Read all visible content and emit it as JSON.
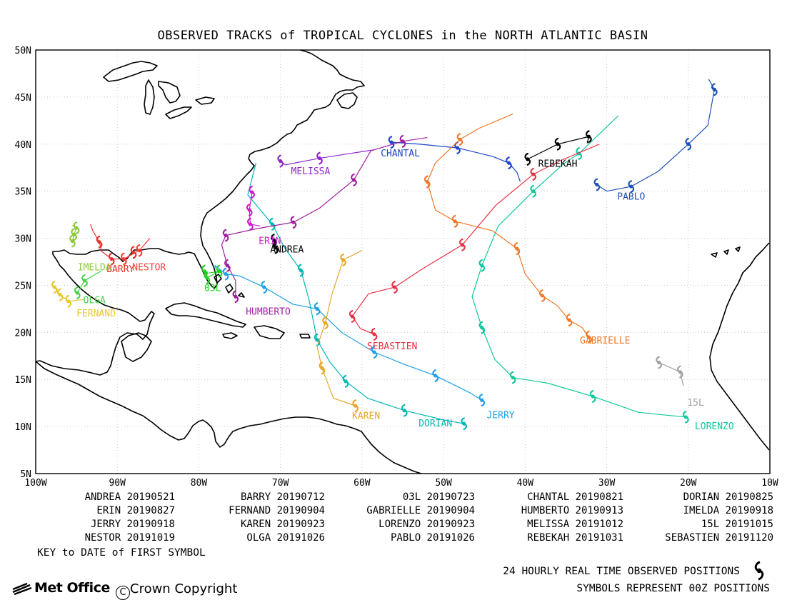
{
  "title": "OBSERVED TRACKS of TROPICAL CYCLONES in the NORTH ATLANTIC BASIN",
  "map": {
    "lon_range": [
      -100,
      -10
    ],
    "lat_range": [
      5,
      50
    ],
    "lat_labels": [
      "5N",
      "10N",
      "15N",
      "20N",
      "25N",
      "30N",
      "35N",
      "40N",
      "45N",
      "50N"
    ],
    "lon_labels": [
      "100W",
      "90W",
      "80W",
      "70W",
      "60W",
      "50W",
      "40W",
      "30W",
      "20W",
      "10W"
    ],
    "grid": true
  },
  "storms": [
    {
      "name": "ANDREA",
      "color": "#000000",
      "label_pos": [
        -69.2,
        28.5
      ],
      "points": [
        [
          -70.8,
          29.8
        ],
        [
          -70.6,
          29.0
        ]
      ]
    },
    {
      "name": "BARRY",
      "color": "#e8302c",
      "label_pos": [
        -89.6,
        26.4
      ],
      "points": [
        [
          -88.0,
          28.5
        ],
        [
          -89.0,
          27.8
        ],
        [
          -90.7,
          27.8
        ],
        [
          -91.9,
          28.6
        ],
        [
          -92.2,
          29.6
        ],
        [
          -93.0,
          30.8
        ],
        [
          -93.3,
          31.5
        ]
      ]
    },
    {
      "name": "03L",
      "color": "#1fd01f",
      "label_pos": [
        -78.3,
        24.4
      ],
      "points": [
        [
          -79.3,
          26.5
        ],
        [
          -79.0,
          25.8
        ],
        [
          -77.5,
          26.5
        ],
        [
          -78.8,
          26.3
        ]
      ]
    },
    {
      "name": "CHANTAL",
      "color": "#1e46c8",
      "label_pos": [
        -55.3,
        38.7
      ],
      "points": [
        [
          -56.4,
          40.2
        ],
        [
          -53.0,
          40.0
        ],
        [
          -48.3,
          39.6
        ],
        [
          -44.0,
          38.7
        ],
        [
          -42.0,
          38.0
        ],
        [
          -41.0,
          37.0
        ],
        [
          -40.6,
          36.0
        ]
      ]
    },
    {
      "name": "DORIAN",
      "color": "#00b7b5",
      "label_pos": [
        -51.0,
        10.0
      ],
      "points": [
        [
          -47.5,
          10.3
        ],
        [
          -50.0,
          10.7
        ],
        [
          -54.8,
          11.7
        ],
        [
          -59.3,
          13.0
        ],
        [
          -62.0,
          14.8
        ],
        [
          -63.9,
          16.8
        ],
        [
          -65.5,
          19.2
        ],
        [
          -66.5,
          23.5
        ],
        [
          -67.5,
          26.6
        ],
        [
          -69.5,
          29.0
        ],
        [
          -71.0,
          31.5
        ],
        [
          -74.0,
          34.6
        ],
        [
          -73.0,
          38.0
        ]
      ]
    },
    {
      "name": "ERIN",
      "color": "#cc1ccc",
      "label_pos": [
        -71.3,
        29.4
      ],
      "points": [
        [
          -73.5,
          34.9
        ],
        [
          -73.8,
          33.0
        ],
        [
          -73.7,
          31.5
        ],
        [
          -72.5,
          31.3
        ]
      ]
    },
    {
      "name": "FERNAND",
      "color": "#e8c82c",
      "label_pos": [
        -92.6,
        21.7
      ],
      "points": [
        [
          -97.7,
          24.8
        ],
        [
          -97.0,
          24.0
        ],
        [
          -96.0,
          23.3
        ],
        [
          -94.0,
          23.5
        ]
      ]
    },
    {
      "name": "GABRIELLE",
      "color": "#f07828",
      "label_pos": [
        -30.2,
        18.8
      ],
      "points": [
        [
          -32.2,
          19.5
        ],
        [
          -33.0,
          20.5
        ],
        [
          -34.6,
          21.3
        ],
        [
          -36.0,
          22.8
        ],
        [
          -37.9,
          23.9
        ],
        [
          -40.0,
          26.2
        ],
        [
          -41.0,
          28.9
        ],
        [
          -44.0,
          30.8
        ],
        [
          -48.6,
          31.8
        ],
        [
          -51.0,
          33.0
        ],
        [
          -52.0,
          36.0
        ],
        [
          -51.0,
          38.0
        ],
        [
          -48.0,
          40.5
        ],
        [
          -45.6,
          41.7
        ],
        [
          -41.5,
          43.2
        ]
      ]
    },
    {
      "name": "HUMBERTO",
      "color": "#a020a0",
      "label_pos": [
        -71.5,
        21.9
      ],
      "points": [
        [
          -75.5,
          23.8
        ],
        [
          -75.5,
          25.5
        ],
        [
          -76.5,
          27.1
        ],
        [
          -77.2,
          29.3
        ],
        [
          -76.7,
          30.3
        ],
        [
          -73.0,
          31.0
        ],
        [
          -68.4,
          31.7
        ],
        [
          -65.2,
          33.2
        ],
        [
          -61.0,
          36.2
        ],
        [
          -58.9,
          39.3
        ],
        [
          -55.0,
          40.3
        ],
        [
          -52.0,
          40.7
        ]
      ]
    },
    {
      "name": "IMELDA",
      "color": "#8cc83c",
      "label_pos": [
        -92.8,
        26.6
      ],
      "points": [
        [
          -95.5,
          29.7
        ],
        [
          -95.3,
          30.4
        ],
        [
          -95.0,
          31.1
        ],
        [
          -95.5,
          31.4
        ]
      ]
    },
    {
      "name": "JERRY",
      "color": "#1ea0e6",
      "label_pos": [
        -43.0,
        10.9
      ],
      "points": [
        [
          -45.3,
          12.8
        ],
        [
          -46.8,
          13.6
        ],
        [
          -51.0,
          15.4
        ],
        [
          -54.8,
          16.6
        ],
        [
          -58.5,
          17.9
        ],
        [
          -62.5,
          20.0
        ],
        [
          -65.5,
          22.5
        ],
        [
          -68.5,
          23.0
        ],
        [
          -72.0,
          24.8
        ],
        [
          -75.0,
          26.0
        ],
        [
          -76.7,
          26.2
        ],
        [
          -78.0,
          27.1
        ],
        [
          -78.0,
          26.8
        ]
      ]
    },
    {
      "name": "KAREN",
      "color": "#e6a628",
      "label_pos": [
        -59.5,
        10.8
      ],
      "points": [
        [
          -60.8,
          12.2
        ],
        [
          -63.5,
          13.0
        ],
        [
          -64.9,
          16.2
        ],
        [
          -65.5,
          18.5
        ],
        [
          -64.5,
          21.0
        ],
        [
          -63.7,
          24.0
        ],
        [
          -62.3,
          27.7
        ],
        [
          -60.0,
          28.7
        ]
      ]
    },
    {
      "name": "LORENZO",
      "color": "#10c89c",
      "label_pos": [
        -16.8,
        9.7
      ],
      "points": [
        [
          -20.3,
          11.0
        ],
        [
          -26.1,
          11.5
        ],
        [
          -31.7,
          13.2
        ],
        [
          -37.2,
          14.6
        ],
        [
          -41.5,
          15.2
        ],
        [
          -43.7,
          17.1
        ],
        [
          -45.3,
          20.5
        ],
        [
          -46.5,
          23.8
        ],
        [
          -45.3,
          27.1
        ],
        [
          -43.3,
          31.3
        ],
        [
          -39.0,
          35.0
        ],
        [
          -35.3,
          37.9
        ],
        [
          -33.4,
          39.0
        ],
        [
          -28.6,
          43.0
        ]
      ]
    },
    {
      "name": "MELISSA",
      "color": "#8c28c8",
      "label_pos": [
        -66.3,
        36.8
      ],
      "points": [
        [
          -70.0,
          38.2
        ],
        [
          -69.4,
          37.8
        ],
        [
          -65.2,
          38.5
        ],
        [
          -61.5,
          39.0
        ],
        [
          -58.5,
          39.4
        ]
      ]
    },
    {
      "name": "15L",
      "color": "#a0a0a0",
      "label_pos": [
        -19.1,
        12.2
      ],
      "points": [
        [
          -23.6,
          16.8
        ],
        [
          -21.0,
          15.8
        ],
        [
          -20.6,
          14.3
        ]
      ]
    },
    {
      "name": "NESTOR",
      "color": "#ff3c3c",
      "label_pos": [
        -86.1,
        26.6
      ],
      "points": [
        [
          -89.2,
          27.8
        ],
        [
          -87.3,
          28.7
        ],
        [
          -86.0,
          30.0
        ]
      ]
    },
    {
      "name": "OLGA",
      "color": "#46d24b",
      "label_pos": [
        -92.8,
        23.1
      ],
      "points": [
        [
          -94.9,
          24.2
        ],
        [
          -94.0,
          25.5
        ],
        [
          -92.0,
          26.5
        ]
      ]
    },
    {
      "name": "PABLO",
      "color": "#1e50b4",
      "label_pos": [
        -27.0,
        34.1
      ],
      "points": [
        [
          -31.2,
          35.7
        ],
        [
          -30.0,
          35.0
        ],
        [
          -27.0,
          35.5
        ],
        [
          -23.7,
          37.1
        ],
        [
          -20.0,
          40.0
        ],
        [
          -17.6,
          42.0
        ],
        [
          -16.8,
          45.8
        ],
        [
          -17.5,
          46.9
        ]
      ]
    },
    {
      "name": "REBEKAH",
      "color": "#000000",
      "label_pos": [
        -36.0,
        37.6
      ],
      "points": [
        [
          -39.7,
          38.4
        ],
        [
          -36.0,
          40.0
        ],
        [
          -32.2,
          40.8
        ],
        [
          -32.4,
          40.1
        ]
      ]
    },
    {
      "name": "SEBASTIEN",
      "color": "#e63246",
      "label_pos": [
        -56.3,
        18.2
      ],
      "points": [
        [
          -58.5,
          19.8
        ],
        [
          -60.2,
          20.4
        ],
        [
          -61.2,
          21.7
        ],
        [
          -59.2,
          24.1
        ],
        [
          -56.0,
          24.8
        ],
        [
          -52.5,
          26.8
        ],
        [
          -47.7,
          29.3
        ],
        [
          -43.6,
          33.5
        ],
        [
          -39.0,
          36.8
        ],
        [
          -35.8,
          38.2
        ],
        [
          -30.9,
          40.0
        ]
      ]
    }
  ],
  "key": [
    [
      {
        "name": "ANDREA",
        "date": "20190521"
      },
      {
        "name": "BARRY",
        "date": "20190712"
      },
      {
        "name": "03L",
        "date": "20190723"
      },
      {
        "name": "CHANTAL",
        "date": "20190821"
      },
      {
        "name": "DORIAN",
        "date": "20190825"
      }
    ],
    [
      {
        "name": "ERIN",
        "date": "20190827"
      },
      {
        "name": "FERNAND",
        "date": "20190904"
      },
      {
        "name": "GABRIELLE",
        "date": "20190904"
      },
      {
        "name": "HUMBERTO",
        "date": "20190913"
      },
      {
        "name": "IMELDA",
        "date": "20190918"
      }
    ],
    [
      {
        "name": "JERRY",
        "date": "20190918"
      },
      {
        "name": "KAREN",
        "date": "20190923"
      },
      {
        "name": "LORENZO",
        "date": "20190923"
      },
      {
        "name": "MELISSA",
        "date": "20191012"
      },
      {
        "name": "15L",
        "date": "20191015"
      }
    ],
    [
      {
        "name": "NESTOR",
        "date": "20191019"
      },
      {
        "name": "OLGA",
        "date": "20191026"
      },
      {
        "name": "PABLO",
        "date": "20191026"
      },
      {
        "name": "REBEKAH",
        "date": "20191031"
      },
      {
        "name": "SEBASTIEN",
        "date": "20191120"
      }
    ]
  ],
  "key_caption": "KEY to DATE of FIRST SYMBOL",
  "legend_line1": "24 HOURLY REAL TIME OBSERVED POSITIONS",
  "legend_line2": "SYMBOLS REPRESENT 00Z POSITIONS",
  "logo_text": "Met Office",
  "copyright": "Crown Copyright",
  "colors": {
    "coast": "#000000",
    "grid": "#cccccc",
    "frame": "#000000"
  }
}
